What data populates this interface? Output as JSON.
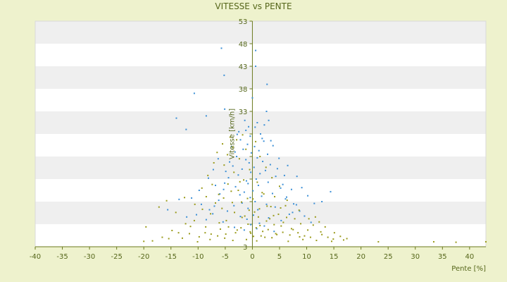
{
  "chart_data": {
    "type": "scatter",
    "title": "VITESSE vs PENTE",
    "xlabel": "Pente [%]",
    "ylabel": "Vitesse [km/h]",
    "xlim": [
      -40,
      43
    ],
    "ylim": [
      3,
      53
    ],
    "xticks": [
      -40,
      -35,
      -30,
      -25,
      -20,
      -15,
      -10,
      -5,
      0,
      5,
      10,
      15,
      20,
      25,
      30,
      35,
      40
    ],
    "yticks": [
      3,
      8,
      13,
      18,
      23,
      28,
      33,
      38,
      43,
      48,
      53
    ],
    "ytick_labels": [
      "3",
      "",
      "",
      "",
      "",
      "",
      "33",
      "38",
      "43",
      "48",
      "53"
    ],
    "grid": "horizontal bands",
    "legend": "none",
    "colors": {
      "background": "#eef2cd",
      "plot_band_light": "#ffffff",
      "plot_band_dark": "#efefef",
      "axis": "#6b7a1e",
      "text": "#55661a"
    },
    "series": [
      {
        "color": "#3b8fd6",
        "points": [
          [
            -5.7,
            47
          ],
          [
            0.6,
            46.5
          ],
          [
            -5.2,
            41
          ],
          [
            0.6,
            43
          ],
          [
            2.7,
            39
          ],
          [
            -10.7,
            37
          ],
          [
            0,
            36
          ],
          [
            -14,
            31.5
          ],
          [
            -8.5,
            32
          ],
          [
            -5.1,
            33.5
          ],
          [
            -12.2,
            29
          ],
          [
            2.6,
            33
          ],
          [
            3,
            31
          ],
          [
            0.5,
            29.5
          ],
          [
            -1.2,
            28.8
          ],
          [
            -0.4,
            27.5
          ],
          [
            1.5,
            28
          ],
          [
            -2.2,
            26.7
          ],
          [
            2.1,
            26.4
          ],
          [
            -0.9,
            25.7
          ],
          [
            0.4,
            25.2
          ],
          [
            -1.7,
            24.6
          ],
          [
            1.2,
            24.3
          ],
          [
            -0.2,
            23.8
          ],
          [
            2.8,
            23.5
          ],
          [
            -2.9,
            23
          ],
          [
            0.9,
            22.7
          ],
          [
            -1.2,
            22.3
          ],
          [
            1.9,
            21.9
          ],
          [
            -0.6,
            21.6
          ],
          [
            3.3,
            21.2
          ],
          [
            -3.6,
            20.9
          ],
          [
            0.3,
            20.6
          ],
          [
            -1.9,
            20.2
          ],
          [
            2.4,
            19.9
          ],
          [
            -0.3,
            19.5
          ],
          [
            1.4,
            19.2
          ],
          [
            -2.6,
            18.9
          ],
          [
            4.3,
            18.6
          ],
          [
            -4.4,
            18.3
          ],
          [
            0.7,
            18
          ],
          [
            -1.1,
            17.6
          ],
          [
            2.9,
            17.3
          ],
          [
            -0.8,
            17
          ],
          [
            1.1,
            16.6
          ],
          [
            -3.1,
            16.3
          ],
          [
            5.2,
            16
          ],
          [
            -5.3,
            15.7
          ],
          [
            0.1,
            15.4
          ],
          [
            -1.5,
            15.1
          ],
          [
            3.7,
            14.8
          ],
          [
            -2.3,
            14.5
          ],
          [
            1.7,
            14.2
          ],
          [
            -0.4,
            13.9
          ],
          [
            6.1,
            13.6
          ],
          [
            -6.2,
            13.3
          ],
          [
            0.5,
            13
          ],
          [
            -1.9,
            12.7
          ],
          [
            2.6,
            12.4
          ],
          [
            -3.4,
            12.1
          ],
          [
            4.2,
            11.8
          ],
          [
            -0.8,
            11.5
          ],
          [
            1,
            11.2
          ],
          [
            -4.6,
            10.9
          ],
          [
            7.4,
            10.6
          ],
          [
            -7.3,
            10.3
          ],
          [
            0.2,
            10
          ],
          [
            -2.2,
            9.7
          ],
          [
            3,
            9.4
          ],
          [
            -1,
            9.1
          ],
          [
            5.3,
            8.8
          ],
          [
            -5.4,
            8.5
          ],
          [
            1.3,
            8.2
          ],
          [
            -0.3,
            7.9
          ],
          [
            2.2,
            7.6
          ],
          [
            -3.3,
            7.3
          ],
          [
            0.8,
            7
          ],
          [
            -1.5,
            6.7
          ],
          [
            4,
            6.4
          ],
          [
            -13.5,
            13.5
          ],
          [
            -15.6,
            11.2
          ],
          [
            -11.2,
            13.8
          ],
          [
            -9.8,
            15.5
          ],
          [
            -8.1,
            18.2
          ],
          [
            -7.2,
            20.1
          ],
          [
            -6.3,
            22.5
          ],
          [
            6.5,
            21
          ],
          [
            8.2,
            18.6
          ],
          [
            9.1,
            16.1
          ],
          [
            10.2,
            14.3
          ],
          [
            11.4,
            12.6
          ],
          [
            12.8,
            13
          ],
          [
            14.4,
            15.2
          ],
          [
            -6.8,
            16.6
          ],
          [
            -4.9,
            19.7
          ],
          [
            -3.8,
            25.2
          ],
          [
            -2.8,
            27.9
          ],
          [
            3.8,
            25.4
          ],
          [
            4.9,
            22.6
          ],
          [
            5.9,
            18.8
          ],
          [
            7.2,
            15.7
          ],
          [
            8.1,
            12.3
          ],
          [
            -9.4,
            12.4
          ],
          [
            -10.3,
            10.1
          ],
          [
            -12.1,
            9.6
          ],
          [
            -8.5,
            9
          ],
          [
            9.6,
            9.8
          ],
          [
            10.8,
            8.4
          ],
          [
            6.8,
            10.2
          ],
          [
            -0.7,
            29.6
          ],
          [
            0.9,
            30.5
          ],
          [
            -1.4,
            31
          ],
          [
            1.8,
            27
          ],
          [
            -2.5,
            28.5
          ],
          [
            2.2,
            30
          ],
          [
            -3.2,
            24
          ],
          [
            3.4,
            26.5
          ],
          [
            -4.2,
            21.8
          ],
          [
            4.6,
            20.3
          ],
          [
            -5.1,
            17.1
          ],
          [
            5.6,
            16.8
          ],
          [
            -6,
            14.7
          ],
          [
            6.3,
            14
          ],
          [
            -7,
            12
          ],
          [
            7.6,
            12.5
          ],
          [
            -7.9,
            11.2
          ],
          [
            8.7,
            10.9
          ]
        ]
      },
      {
        "color": "#9a9a1a",
        "points": [
          [
            -1.8,
            27.8
          ],
          [
            -4.1,
            27.3
          ],
          [
            -2.9,
            26.7
          ],
          [
            0.6,
            26.3
          ],
          [
            -5.5,
            25.8
          ],
          [
            -3.6,
            25.1
          ],
          [
            -1.2,
            24.6
          ],
          [
            -6.5,
            23.9
          ],
          [
            -4.6,
            23.4
          ],
          [
            1.4,
            23
          ],
          [
            -2.4,
            22.5
          ],
          [
            -7.1,
            21.6
          ],
          [
            -5.2,
            21.1
          ],
          [
            2.5,
            20.6
          ],
          [
            -0.5,
            20.1
          ],
          [
            -3.4,
            19.5
          ],
          [
            -8.2,
            18.8
          ],
          [
            3.6,
            18.3
          ],
          [
            -1.6,
            17.8
          ],
          [
            0.9,
            17.3
          ],
          [
            -4.5,
            16.9
          ],
          [
            5,
            16.4
          ],
          [
            -9.3,
            16
          ],
          [
            -2.6,
            15.5
          ],
          [
            1.8,
            15
          ],
          [
            -6.2,
            14.6
          ],
          [
            4.1,
            14.1
          ],
          [
            -0.9,
            13.7
          ],
          [
            6.4,
            13.3
          ],
          [
            -3.7,
            12.8
          ],
          [
            -10.6,
            12.4
          ],
          [
            2.7,
            12
          ],
          [
            -5.6,
            11.5
          ],
          [
            8.6,
            11.1
          ],
          [
            0.4,
            10.7
          ],
          [
            -7.7,
            10.3
          ],
          [
            3.9,
            9.9
          ],
          [
            -1.9,
            9.5
          ],
          [
            10.4,
            9.2
          ],
          [
            -4.8,
            8.8
          ],
          [
            5.7,
            8.4
          ],
          [
            -12.3,
            8.1
          ],
          [
            1.4,
            7.7
          ],
          [
            -8.6,
            7.4
          ],
          [
            7.2,
            7
          ],
          [
            -2.8,
            6.7
          ],
          [
            12.6,
            6.3
          ],
          [
            -0.3,
            6
          ],
          [
            4.5,
            5.7
          ],
          [
            -6.4,
            5.4
          ],
          [
            2.3,
            5.1
          ],
          [
            -15.4,
            4.8
          ],
          [
            9.3,
            4.6
          ],
          [
            -3.6,
            4.4
          ],
          [
            0.8,
            4.3
          ],
          [
            6.6,
            4.2
          ],
          [
            -10.1,
            4.1
          ],
          [
            14.6,
            4.2
          ],
          [
            -1.1,
            4.6
          ],
          [
            3.6,
            5
          ],
          [
            -18.4,
            4.3
          ],
          [
            11.8,
            4.4
          ],
          [
            -5.1,
            4.9
          ],
          [
            1.6,
            5.4
          ],
          [
            16.8,
            4.5
          ],
          [
            -7.6,
            5.8
          ],
          [
            -0.4,
            6.3
          ],
          [
            8.7,
            5.2
          ],
          [
            -13.6,
            6.1
          ],
          [
            2.9,
            6.8
          ],
          [
            -2.1,
            7.2
          ],
          [
            5.3,
            7.6
          ],
          [
            23.2,
            4.1
          ],
          [
            33.4,
            4.1
          ],
          [
            37.5,
            4
          ],
          [
            43,
            4.1
          ],
          [
            -20,
            4.2
          ],
          [
            -19.6,
            7.4
          ],
          [
            -17.2,
            11.8
          ],
          [
            -15.8,
            13.2
          ],
          [
            -14.1,
            10.6
          ],
          [
            -12.5,
            13.9
          ],
          [
            -11.4,
            7.5
          ],
          [
            -9.8,
            5.2
          ],
          [
            -8.5,
            14.1
          ],
          [
            -7.4,
            16.8
          ],
          [
            -6.1,
            8.3
          ],
          [
            -4.9,
            5.8
          ],
          [
            -3.3,
            10.6
          ],
          [
            -2,
            12.9
          ],
          [
            -0.8,
            8
          ],
          [
            0.2,
            5.3
          ],
          [
            1.3,
            11.4
          ],
          [
            2.1,
            14.7
          ],
          [
            3.2,
            9.2
          ],
          [
            4.3,
            5.9
          ],
          [
            5.2,
            11.6
          ],
          [
            6.3,
            9.5
          ],
          [
            7.5,
            6.8
          ],
          [
            8.9,
            8.1
          ],
          [
            10.2,
            6.7
          ],
          [
            11.2,
            7.8
          ],
          [
            12.3,
            8.5
          ],
          [
            13.4,
            7.4
          ],
          [
            15.1,
            6.1
          ],
          [
            17.4,
            4.8
          ],
          [
            -16.6,
            5.1
          ],
          [
            -14.8,
            6.6
          ],
          [
            -12.9,
            4.9
          ],
          [
            -11.6,
            5.9
          ],
          [
            -10.7,
            8.8
          ],
          [
            -9.2,
            11.3
          ],
          [
            -8.7,
            6.1
          ],
          [
            -7.8,
            4.6
          ],
          [
            -6.8,
            12.7
          ],
          [
            -5.9,
            6.9
          ],
          [
            -5.3,
            13.8
          ],
          [
            -4.4,
            7.4
          ],
          [
            -3.9,
            15.3
          ],
          [
            -3.1,
            6.1
          ],
          [
            -2.3,
            17.4
          ],
          [
            -1.4,
            9.8
          ],
          [
            -0.6,
            11.1
          ],
          [
            0.1,
            13.6
          ],
          [
            0.7,
            7.2
          ],
          [
            1.1,
            9.6
          ],
          [
            1.9,
            6.4
          ],
          [
            2.6,
            8.7
          ],
          [
            3.4,
            11.9
          ],
          [
            4,
            7.9
          ],
          [
            4.8,
            10.2
          ],
          [
            5.6,
            6.2
          ],
          [
            6.1,
            12.1
          ],
          [
            6.9,
            5.6
          ],
          [
            7.8,
            9.2
          ],
          [
            8.4,
            6.1
          ],
          [
            9.6,
            5.4
          ],
          [
            10.7,
            5.1
          ],
          [
            11.6,
            9.6
          ],
          [
            12.8,
            5.7
          ],
          [
            13.9,
            5.1
          ],
          [
            14.9,
            4.7
          ],
          [
            16.2,
            5.3
          ]
        ]
      }
    ]
  }
}
